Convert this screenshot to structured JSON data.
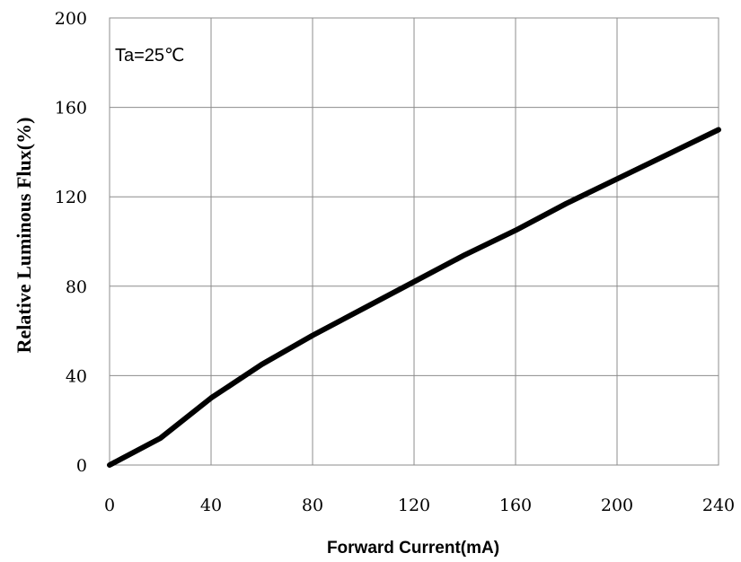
{
  "chart_data": {
    "type": "line",
    "title": "",
    "xlabel": "Forward Current(mA)",
    "ylabel": "Relative Luminous Flux(%)",
    "annotation": "Ta=25℃",
    "xlim": [
      0,
      240
    ],
    "ylim": [
      0,
      200
    ],
    "xticks": [
      "0",
      "40",
      "80",
      "120",
      "160",
      "200",
      "240"
    ],
    "yticks": [
      "0",
      "40",
      "80",
      "120",
      "160",
      "200"
    ],
    "grid": true,
    "series": [
      {
        "color": "#000000",
        "x": [
          0,
          20,
          40,
          60,
          80,
          100,
          120,
          140,
          160,
          180,
          200,
          220,
          240
        ],
        "y": [
          0,
          12,
          30,
          45,
          58,
          70,
          82,
          94,
          105,
          117,
          128,
          139,
          150
        ]
      }
    ]
  }
}
